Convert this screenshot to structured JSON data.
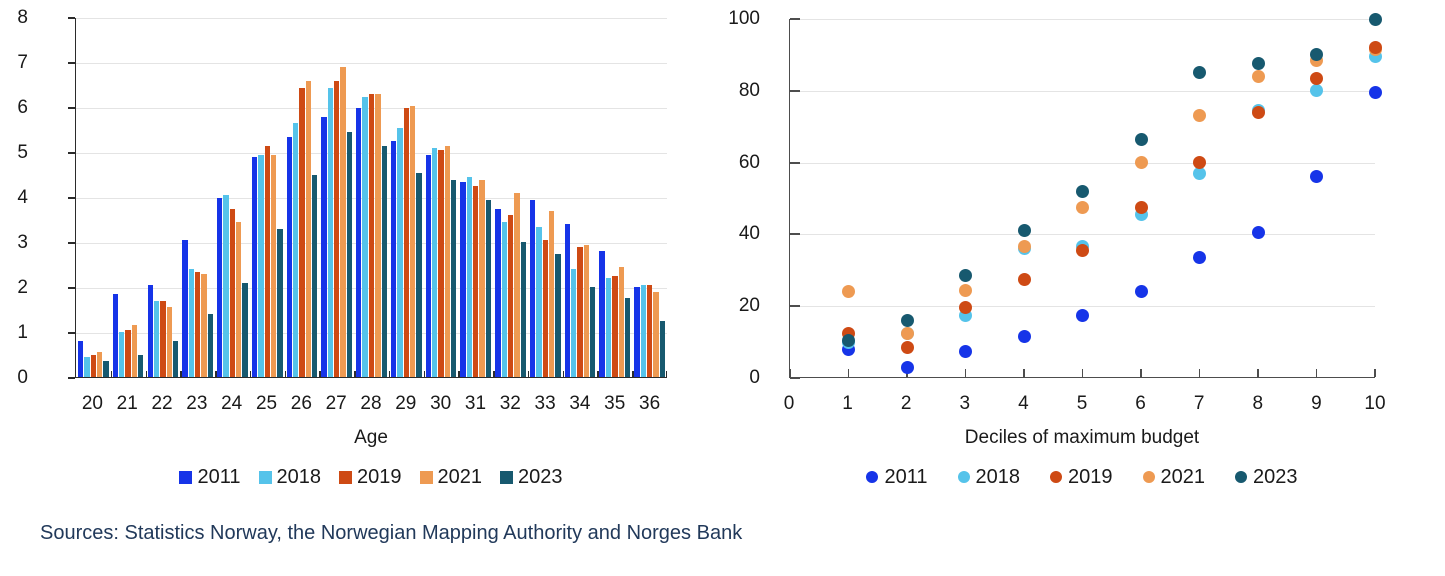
{
  "sources_note": {
    "text": "Sources: Statistics Norway, the Norwegian Mapping Authority and Norges Bank",
    "color": "#21395A"
  },
  "chart_data": [
    {
      "type": "bar",
      "title": "",
      "xlabel": "Age",
      "ylabel": "",
      "categories": [
        "20",
        "21",
        "22",
        "23",
        "24",
        "25",
        "26",
        "27",
        "28",
        "29",
        "30",
        "31",
        "32",
        "33",
        "34",
        "35",
        "36"
      ],
      "ylim": [
        0,
        8
      ],
      "yticks": [
        0,
        1,
        2,
        3,
        4,
        5,
        6,
        7,
        8
      ],
      "grid": "horizontal",
      "legend_position": "bottom",
      "legend_marker": "square",
      "series": [
        {
          "name": "2011",
          "color": "#1634E8",
          "values": [
            0.8,
            1.85,
            2.05,
            3.05,
            4.0,
            4.9,
            5.35,
            5.8,
            6.0,
            5.25,
            4.95,
            4.35,
            3.75,
            3.95,
            3.4,
            2.8,
            2.0
          ]
        },
        {
          "name": "2018",
          "color": "#55C3EA",
          "values": [
            0.45,
            1.0,
            1.7,
            2.4,
            4.05,
            4.95,
            5.65,
            6.45,
            6.25,
            5.55,
            5.1,
            4.45,
            3.45,
            3.35,
            2.4,
            2.2,
            2.05
          ]
        },
        {
          "name": "2019",
          "color": "#CE4A14",
          "values": [
            0.5,
            1.05,
            1.7,
            2.35,
            3.75,
            5.15,
            6.45,
            6.6,
            6.3,
            6.0,
            5.05,
            4.25,
            3.6,
            3.05,
            2.9,
            2.25,
            2.05
          ]
        },
        {
          "name": "2021",
          "color": "#EE9A52",
          "values": [
            0.55,
            1.15,
            1.55,
            2.3,
            3.45,
            4.95,
            6.6,
            6.9,
            6.3,
            6.05,
            5.15,
            4.4,
            4.1,
            3.7,
            2.95,
            2.45,
            1.9
          ]
        },
        {
          "name": "2023",
          "color": "#17596F",
          "values": [
            0.35,
            0.5,
            0.8,
            1.4,
            2.1,
            3.3,
            4.5,
            5.45,
            5.15,
            4.55,
            4.4,
            3.95,
            3.0,
            2.75,
            2.0,
            1.75,
            1.25
          ]
        }
      ]
    },
    {
      "type": "scatter",
      "title": "",
      "xlabel": "Deciles of maximum budget",
      "ylabel": "",
      "x": [
        1,
        2,
        3,
        4,
        5,
        6,
        7,
        8,
        9,
        10
      ],
      "xticks": [
        0,
        1,
        2,
        3,
        4,
        5,
        6,
        7,
        8,
        9,
        10
      ],
      "xlim": [
        0,
        10
      ],
      "ylim": [
        0,
        100
      ],
      "yticks": [
        0,
        20,
        40,
        60,
        80,
        100
      ],
      "grid": "horizontal",
      "legend_position": "bottom",
      "legend_marker": "circle",
      "draw_order": [
        "2011",
        "2018",
        "2021",
        "2019",
        "2023"
      ],
      "series": [
        {
          "name": "2011",
          "color": "#1634E8",
          "values": [
            8,
            3,
            7.5,
            11.5,
            17.5,
            24,
            33.5,
            40.5,
            56,
            79.5
          ]
        },
        {
          "name": "2018",
          "color": "#55C3EA",
          "values": [
            10,
            12.5,
            17.5,
            36,
            36.5,
            45.5,
            57,
            74.5,
            80,
            89.5
          ]
        },
        {
          "name": "2019",
          "color": "#CE4A14",
          "values": [
            12.5,
            8.5,
            19.5,
            27.5,
            35.5,
            47.5,
            60,
            74,
            83.5,
            92
          ]
        },
        {
          "name": "2021",
          "color": "#EE9A52",
          "values": [
            24,
            12.5,
            24.5,
            36.5,
            47.5,
            60,
            73,
            84,
            88.5,
            91.5
          ]
        },
        {
          "name": "2023",
          "color": "#17596F",
          "values": [
            10.5,
            16,
            28.5,
            41,
            52,
            66.5,
            85,
            87.5,
            90,
            100
          ]
        }
      ]
    }
  ]
}
